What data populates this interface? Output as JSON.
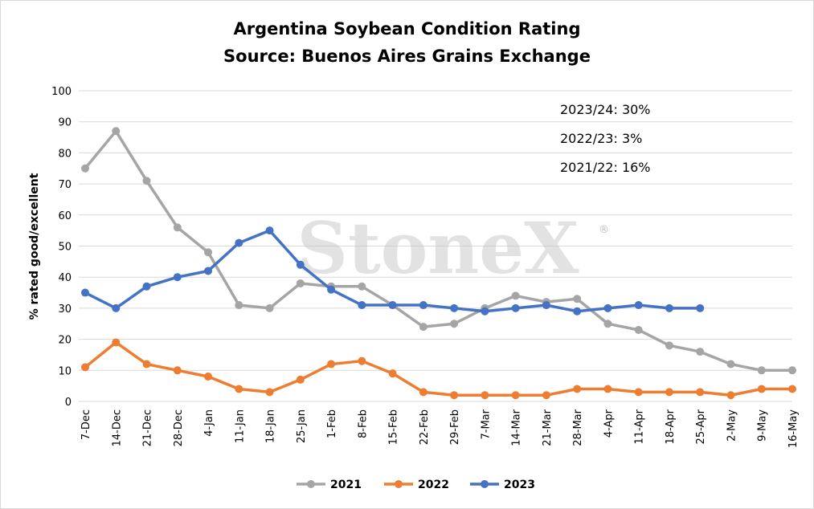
{
  "title_line1": "Argentina Soybean Condition Rating",
  "title_line2": "Source: Buenos Aires Grains Exchange",
  "watermark": "StoneX",
  "watermark_mark": "®",
  "annotations": [
    "2023/24: 30%",
    "2022/23: 3%",
    "2021/22: 16%"
  ],
  "chart_data": {
    "type": "line",
    "title": "Argentina Soybean Condition Rating",
    "subtitle": "Source: Buenos Aires Grains Exchange",
    "xlabel": "",
    "ylabel": "% rated good/excellent",
    "ylim": [
      0,
      100
    ],
    "yticks": [
      0,
      10,
      20,
      30,
      40,
      50,
      60,
      70,
      80,
      90,
      100
    ],
    "grid": "horizontal",
    "legend_position": "bottom",
    "categories": [
      "7-Dec",
      "14-Dec",
      "21-Dec",
      "28-Dec",
      "4-Jan",
      "11-Jan",
      "18-Jan",
      "25-Jan",
      "1-Feb",
      "8-Feb",
      "15-Feb",
      "22-Feb",
      "29-Feb",
      "7-Mar",
      "14-Mar",
      "21-Mar",
      "28-Mar",
      "4-Apr",
      "11-Apr",
      "18-Apr",
      "25-Apr",
      "2-May",
      "9-May",
      "16-May"
    ],
    "series": [
      {
        "name": "2021",
        "color": "#a5a5a5",
        "values": [
          75,
          87,
          71,
          56,
          48,
          31,
          30,
          38,
          37,
          37,
          31,
          24,
          25,
          30,
          34,
          32,
          33,
          25,
          23,
          18,
          16,
          12,
          10,
          10
        ]
      },
      {
        "name": "2022",
        "color": "#ed7d31",
        "values": [
          11,
          19,
          12,
          10,
          8,
          4,
          3,
          7,
          12,
          13,
          9,
          3,
          2,
          2,
          2,
          2,
          4,
          4,
          3,
          3,
          3,
          2,
          4,
          4
        ]
      },
      {
        "name": "2023",
        "color": "#4472c4",
        "values": [
          35,
          30,
          37,
          40,
          42,
          51,
          55,
          44,
          36,
          31,
          31,
          31,
          30,
          29,
          30,
          31,
          29,
          30,
          31,
          30,
          30,
          null,
          null,
          null
        ]
      }
    ]
  }
}
